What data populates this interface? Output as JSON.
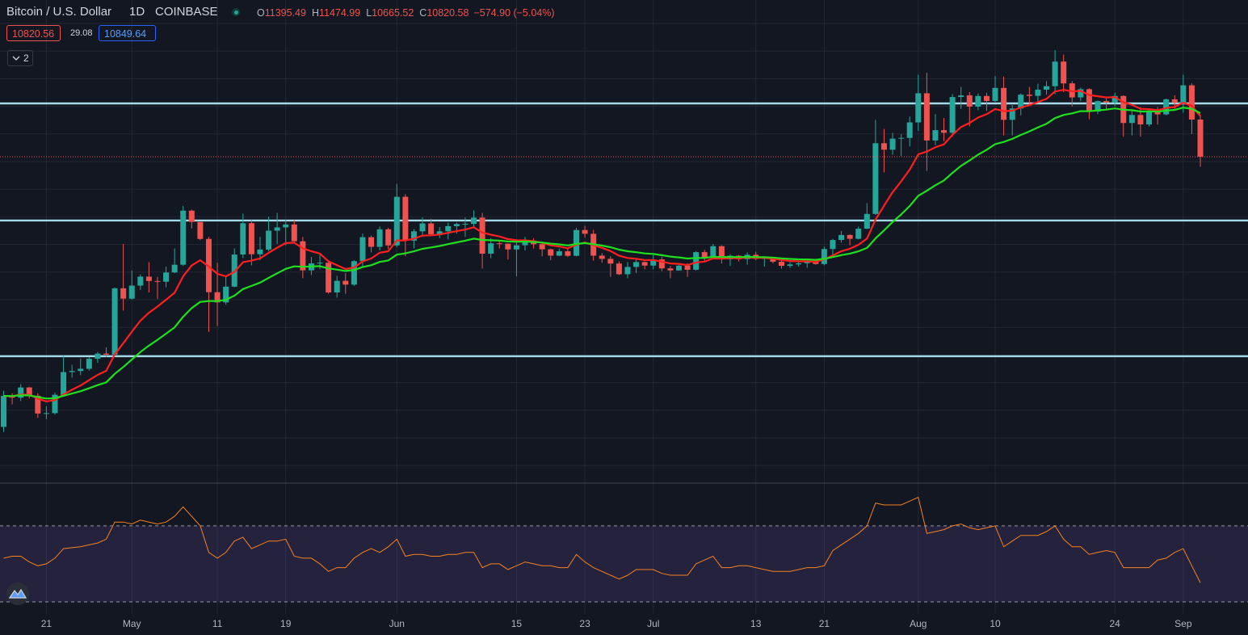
{
  "header": {
    "symbol": "Bitcoin / U.S. Dollar",
    "interval": "1D",
    "exchange": "COINBASE",
    "ohlc_labels": [
      "O",
      "H",
      "L",
      "C"
    ],
    "change": "−574.90 (−5.04%)",
    "bid": 10820.56,
    "spread": 29.08,
    "ask": 10849.64,
    "indicators_count": 2
  },
  "chart_data": {
    "type": "candlestick",
    "up_color": "#26a69a",
    "down_color": "#ef5350",
    "ylim": [
      5770,
      13245
    ],
    "last_price_line": true,
    "categories": [
      null,
      null,
      null,
      null,
      null,
      "21",
      null,
      null,
      null,
      null,
      null,
      null,
      null,
      null,
      null,
      "May",
      null,
      null,
      null,
      null,
      null,
      null,
      null,
      null,
      null,
      "11",
      null,
      null,
      null,
      null,
      null,
      null,
      null,
      "19",
      null,
      null,
      null,
      null,
      null,
      null,
      null,
      null,
      null,
      null,
      null,
      null,
      "Jun",
      null,
      null,
      null,
      null,
      null,
      null,
      null,
      null,
      null,
      null,
      null,
      null,
      null,
      "15",
      null,
      null,
      null,
      null,
      null,
      null,
      null,
      "23",
      null,
      null,
      null,
      null,
      null,
      null,
      null,
      "Jul",
      null,
      null,
      null,
      null,
      null,
      null,
      null,
      null,
      null,
      null,
      null,
      "13",
      null,
      null,
      null,
      null,
      null,
      null,
      null,
      "21",
      null,
      null,
      null,
      null,
      null,
      null,
      null,
      null,
      null,
      null,
      "Aug",
      null,
      null,
      null,
      null,
      null,
      null,
      null,
      null,
      "10",
      null,
      null,
      null,
      null,
      null,
      null,
      null,
      null,
      null,
      null,
      null,
      null,
      null,
      "24",
      null,
      null,
      null,
      null,
      null,
      null,
      null,
      "Sep",
      null,
      null
    ],
    "open": [
      6640,
      7119,
      7092,
      7250,
      7122,
      6847,
      6853,
      7137,
      7488,
      7505,
      7539,
      7694,
      7774,
      7758,
      8784,
      8624,
      8826,
      8965,
      8897,
      8886,
      9029,
      9149,
      9986,
      9811,
      9548,
      8724,
      8566,
      8810,
      9307,
      9792,
      9311,
      9384,
      9676,
      9727,
      9772,
      9512,
      9062,
      9170,
      9180,
      8720,
      8900,
      8841,
      9204,
      9575,
      9426,
      9697,
      9448,
      10200,
      9522,
      9666,
      9788,
      9621,
      9666,
      9746,
      9779,
      9782,
      9878,
      9320,
      9480,
      9475,
      9386,
      9450,
      9523,
      9466,
      9388,
      9290,
      9357,
      9287,
      9686,
      9628,
      9289,
      9240,
      9167,
      9002,
      9115,
      9190,
      9136,
      9231,
      9092,
      9061,
      9135,
      9071,
      9344,
      9253,
      9436,
      9233,
      9288,
      9235,
      9303,
      9240,
      9255,
      9195,
      9132,
      9154,
      9171,
      9210,
      9160,
      9392,
      9532,
      9609,
      9550,
      9707,
      9935,
      11029,
      10929,
      11100,
      11111,
      11351,
      11802,
      11071,
      11231,
      11191,
      11744,
      11769,
      11595,
      11760,
      11683,
      11885,
      11391,
      11567,
      11780,
      11762,
      11858,
      11911,
      12292,
      11955,
      11738,
      11865,
      11519,
      11681,
      11660,
      11760,
      11342,
      11466,
      11320,
      11534,
      11475,
      11708,
      11655,
      11925,
      11395.49
    ],
    "high": [
      7200,
      7160,
      7300,
      7260,
      7160,
      6960,
      7170,
      7740,
      7600,
      7700,
      7720,
      7800,
      7870,
      8800,
      9470,
      9060,
      9000,
      9190,
      8960,
      9120,
      9400,
      10060,
      10000,
      9800,
      9580,
      9180,
      8970,
      9400,
      9940,
      9840,
      9580,
      9890,
      9950,
      9850,
      9840,
      9580,
      9270,
      9320,
      9190,
      8980,
      9020,
      9220,
      9630,
      9600,
      9740,
      9720,
      10400,
      10240,
      9700,
      9880,
      9860,
      9730,
      9800,
      9800,
      9880,
      9990,
      9950,
      9560,
      9520,
      9480,
      9500,
      9580,
      9560,
      9490,
      9400,
      9400,
      9410,
      9720,
      9750,
      9690,
      9330,
      9280,
      9200,
      9190,
      9240,
      9200,
      9300,
      9270,
      9130,
      9150,
      9170,
      9360,
      9380,
      9470,
      9450,
      9310,
      9300,
      9340,
      9350,
      9280,
      9270,
      9210,
      9190,
      9200,
      9230,
      9230,
      9430,
      9550,
      9670,
      9620,
      9740,
      10100,
      11390,
      11250,
      11190,
      11170,
      11440,
      12090,
      12120,
      11480,
      11420,
      11790,
      11900,
      11820,
      11800,
      11810,
      12070,
      12060,
      11620,
      11800,
      11900,
      11950,
      11990,
      12470,
      12400,
      11990,
      11890,
      11880,
      11690,
      11720,
      11810,
      11770,
      11530,
      11590,
      11550,
      11590,
      11720,
      11770,
      12090,
      11955,
      11474.99
    ],
    "low": [
      6560,
      6990,
      7040,
      7080,
      6780,
      6760,
      6830,
      7120,
      7400,
      7440,
      7510,
      7630,
      7720,
      7740,
      8440,
      8610,
      8760,
      8720,
      8620,
      8800,
      9020,
      9130,
      9710,
      9530,
      8110,
      8200,
      8530,
      8800,
      9250,
      9140,
      9220,
      9360,
      9470,
      9450,
      9480,
      8940,
      8990,
      9080,
      8700,
      8640,
      8700,
      8820,
      9110,
      9340,
      9370,
      9390,
      9420,
      9280,
      9400,
      9580,
      9590,
      9560,
      9540,
      9630,
      9580,
      9720,
      9090,
      9250,
      9400,
      9230,
      8970,
      9370,
      9400,
      9280,
      9220,
      9280,
      9270,
      9280,
      9570,
      9210,
      9180,
      8960,
      8990,
      8940,
      9020,
      9080,
      9080,
      9050,
      8940,
      9060,
      8960,
      9060,
      9200,
      9230,
      9170,
      9130,
      9200,
      9150,
      9220,
      9120,
      9170,
      9090,
      9100,
      9120,
      9100,
      9150,
      9140,
      9270,
      9490,
      9450,
      9540,
      9700,
      9920,
      10580,
      10850,
      10830,
      10980,
      11220,
      10600,
      11000,
      11060,
      11130,
      11560,
      11290,
      11540,
      11530,
      11670,
      11150,
      11150,
      11460,
      11630,
      11680,
      11780,
      11790,
      11820,
      11600,
      11680,
      11400,
      11480,
      11550,
      11600,
      11130,
      11150,
      11130,
      11290,
      11320,
      11460,
      11560,
      11500,
      11170,
      10665.52
    ],
    "close": [
      7119,
      7092,
      7250,
      7122,
      6847,
      6853,
      7137,
      7488,
      7505,
      7539,
      7694,
      7774,
      7758,
      8784,
      8624,
      8826,
      8965,
      8897,
      8886,
      9029,
      9149,
      9986,
      9811,
      9548,
      8724,
      8566,
      8810,
      9307,
      9792,
      9311,
      9384,
      9676,
      9727,
      9772,
      9512,
      9062,
      9170,
      9180,
      8720,
      8900,
      8841,
      9204,
      9575,
      9426,
      9697,
      9448,
      10200,
      9522,
      9666,
      9788,
      9621,
      9666,
      9746,
      9779,
      9782,
      9878,
      9320,
      9480,
      9475,
      9386,
      9450,
      9523,
      9466,
      9388,
      9290,
      9357,
      9287,
      9686,
      9628,
      9289,
      9240,
      9167,
      9002,
      9115,
      9190,
      9136,
      9231,
      9092,
      9061,
      9135,
      9071,
      9344,
      9253,
      9436,
      9233,
      9288,
      9235,
      9303,
      9240,
      9255,
      9195,
      9132,
      9154,
      9171,
      9210,
      9160,
      9392,
      9532,
      9609,
      9550,
      9707,
      9935,
      11029,
      10929,
      11100,
      11111,
      11351,
      11802,
      11071,
      11231,
      11191,
      11744,
      11769,
      11595,
      11760,
      11683,
      11885,
      11391,
      11567,
      11780,
      11762,
      11858,
      11911,
      12292,
      11955,
      11738,
      11865,
      11519,
      11681,
      11660,
      11760,
      11342,
      11466,
      11320,
      11534,
      11475,
      11708,
      11655,
      11925,
      11395,
      10820.58
    ],
    "overlays": [
      {
        "color": "#ff1f1f",
        "values": [
          7119,
          7114,
          7141,
          7137,
          7079,
          7034,
          7055,
          7142,
          7215,
          7280,
          7363,
          7445,
          7508,
          7763,
          7935,
          8113,
          8283,
          8406,
          8502,
          8607,
          8715,
          8969,
          9137,
          9219,
          9120,
          9009,
          8969,
          9037,
          9188,
          9213,
          9247,
          9333,
          9412,
          9484,
          9490,
          9404,
          9357,
          9322,
          9202,
          9142,
          9082,
          9106,
          9200,
          9245,
          9335,
          9358,
          9526,
          9525,
          9553,
          9600,
          9604,
          9616,
          9642,
          9669,
          9692,
          9729,
          9647,
          9614,
          9586,
          9546,
          9527,
          9526,
          9514,
          9489,
          9449,
          9431,
          9402,
          9459,
          9493,
          9452,
          9410,
          9361,
          9289,
          9254,
          9241,
          9220,
          9222,
          9196,
          9169,
          9162,
          9144,
          9184,
          9198,
          9246,
          9243,
          9252,
          9249,
          9260,
          9256,
          9256,
          9244,
          9222,
          9208,
          9201,
          9203,
          9194,
          9234,
          9294,
          9357,
          9396,
          9458,
          9553,
          9848,
          10064,
          10271,
          10439,
          10621,
          10857,
          10900,
          10966,
          11011,
          11158,
          11280,
          11343,
          11426,
          11477,
          11559,
          11525,
          11533,
          11582,
          11618,
          11666,
          11715,
          11830,
          11855,
          11832,
          11839,
          11775,
          11756,
          11737,
          11742,
          11662,
          11623,
          11562,
          11556,
          11540,
          11574,
          11590,
          11657,
          11605,
          11448
        ]
      },
      {
        "color": "#1fe01f",
        "values": [
          7119,
          7117,
          7129,
          7128,
          7102,
          7079,
          7084,
          7121,
          7156,
          7191,
          7237,
          7286,
          7329,
          7461,
          7567,
          7681,
          7798,
          7898,
          7988,
          8083,
          8180,
          8344,
          8477,
          8574,
          8588,
          8586,
          8606,
          8670,
          8772,
          8821,
          8872,
          8945,
          9016,
          9085,
          9124,
          9118,
          9123,
          9128,
          9091,
          9074,
          9053,
          9067,
          9113,
          9141,
          9192,
          9215,
          9305,
          9325,
          9356,
          9395,
          9416,
          9439,
          9467,
          9495,
          9521,
          9553,
          9532,
          9527,
          9522,
          9510,
          9505,
          9507,
          9503,
          9493,
          9475,
          9464,
          9448,
          9470,
          9484,
          9466,
          9445,
          9420,
          9382,
          9358,
          9343,
          9324,
          9316,
          9296,
          9275,
          9262,
          9245,
          9254,
          9254,
          9271,
          9268,
          9270,
          9267,
          9270,
          9267,
          9266,
          9260,
          9248,
          9239,
          9233,
          9231,
          9225,
          9240,
          9267,
          9298,
          9321,
          9356,
          9409,
          9556,
          9681,
          9810,
          9928,
          10057,
          10216,
          10294,
          10379,
          10453,
          10570,
          10679,
          10762,
          10853,
          10928,
          11015,
          11049,
          11096,
          11158,
          11213,
          11272,
          11330,
          11417,
          11466,
          11491,
          11525,
          11524,
          11538,
          11549,
          11568,
          11547,
          11540,
          11520,
          11521,
          11517,
          11534,
          11545,
          11580,
          11563,
          11495
        ]
      }
    ],
    "hlines": {
      "color": "#a3dbe9",
      "values": [
        11645,
        9833,
        7733
      ]
    },
    "rsi": {
      "color": "#f5821f",
      "band_color": "#7e57c2",
      "ylim": [
        23.6,
        92.5
      ],
      "levels": [
        70,
        30
      ],
      "values": [
        53,
        54,
        54,
        51,
        49,
        50,
        53,
        58,
        58.5,
        59,
        60,
        61,
        63,
        72,
        72,
        71,
        73,
        72,
        71,
        72,
        75,
        80,
        75,
        70,
        56,
        53,
        56,
        62,
        64,
        58,
        60,
        62,
        62,
        63,
        54,
        53,
        53,
        50,
        46,
        48,
        48,
        53,
        56,
        58,
        56,
        59,
        63,
        54,
        55,
        55,
        54,
        54,
        55,
        55,
        56,
        56,
        48,
        50,
        50,
        47,
        49,
        51,
        50,
        49,
        49,
        48,
        48,
        55,
        51,
        48,
        46,
        44,
        42,
        44,
        47,
        47,
        47,
        45,
        44,
        44,
        44,
        50,
        52,
        54,
        48,
        48,
        49,
        49,
        48,
        47,
        46,
        46,
        46,
        47,
        48,
        48,
        49,
        57,
        60,
        63,
        66,
        70,
        82,
        81,
        81,
        81,
        83,
        85,
        66,
        67,
        68,
        70,
        71,
        69,
        68,
        69,
        70,
        59,
        62,
        65,
        65,
        65,
        67,
        70,
        63,
        59,
        59,
        55,
        56,
        57,
        56,
        48,
        48,
        48,
        48,
        52,
        53,
        56,
        58,
        49,
        40
      ]
    }
  }
}
